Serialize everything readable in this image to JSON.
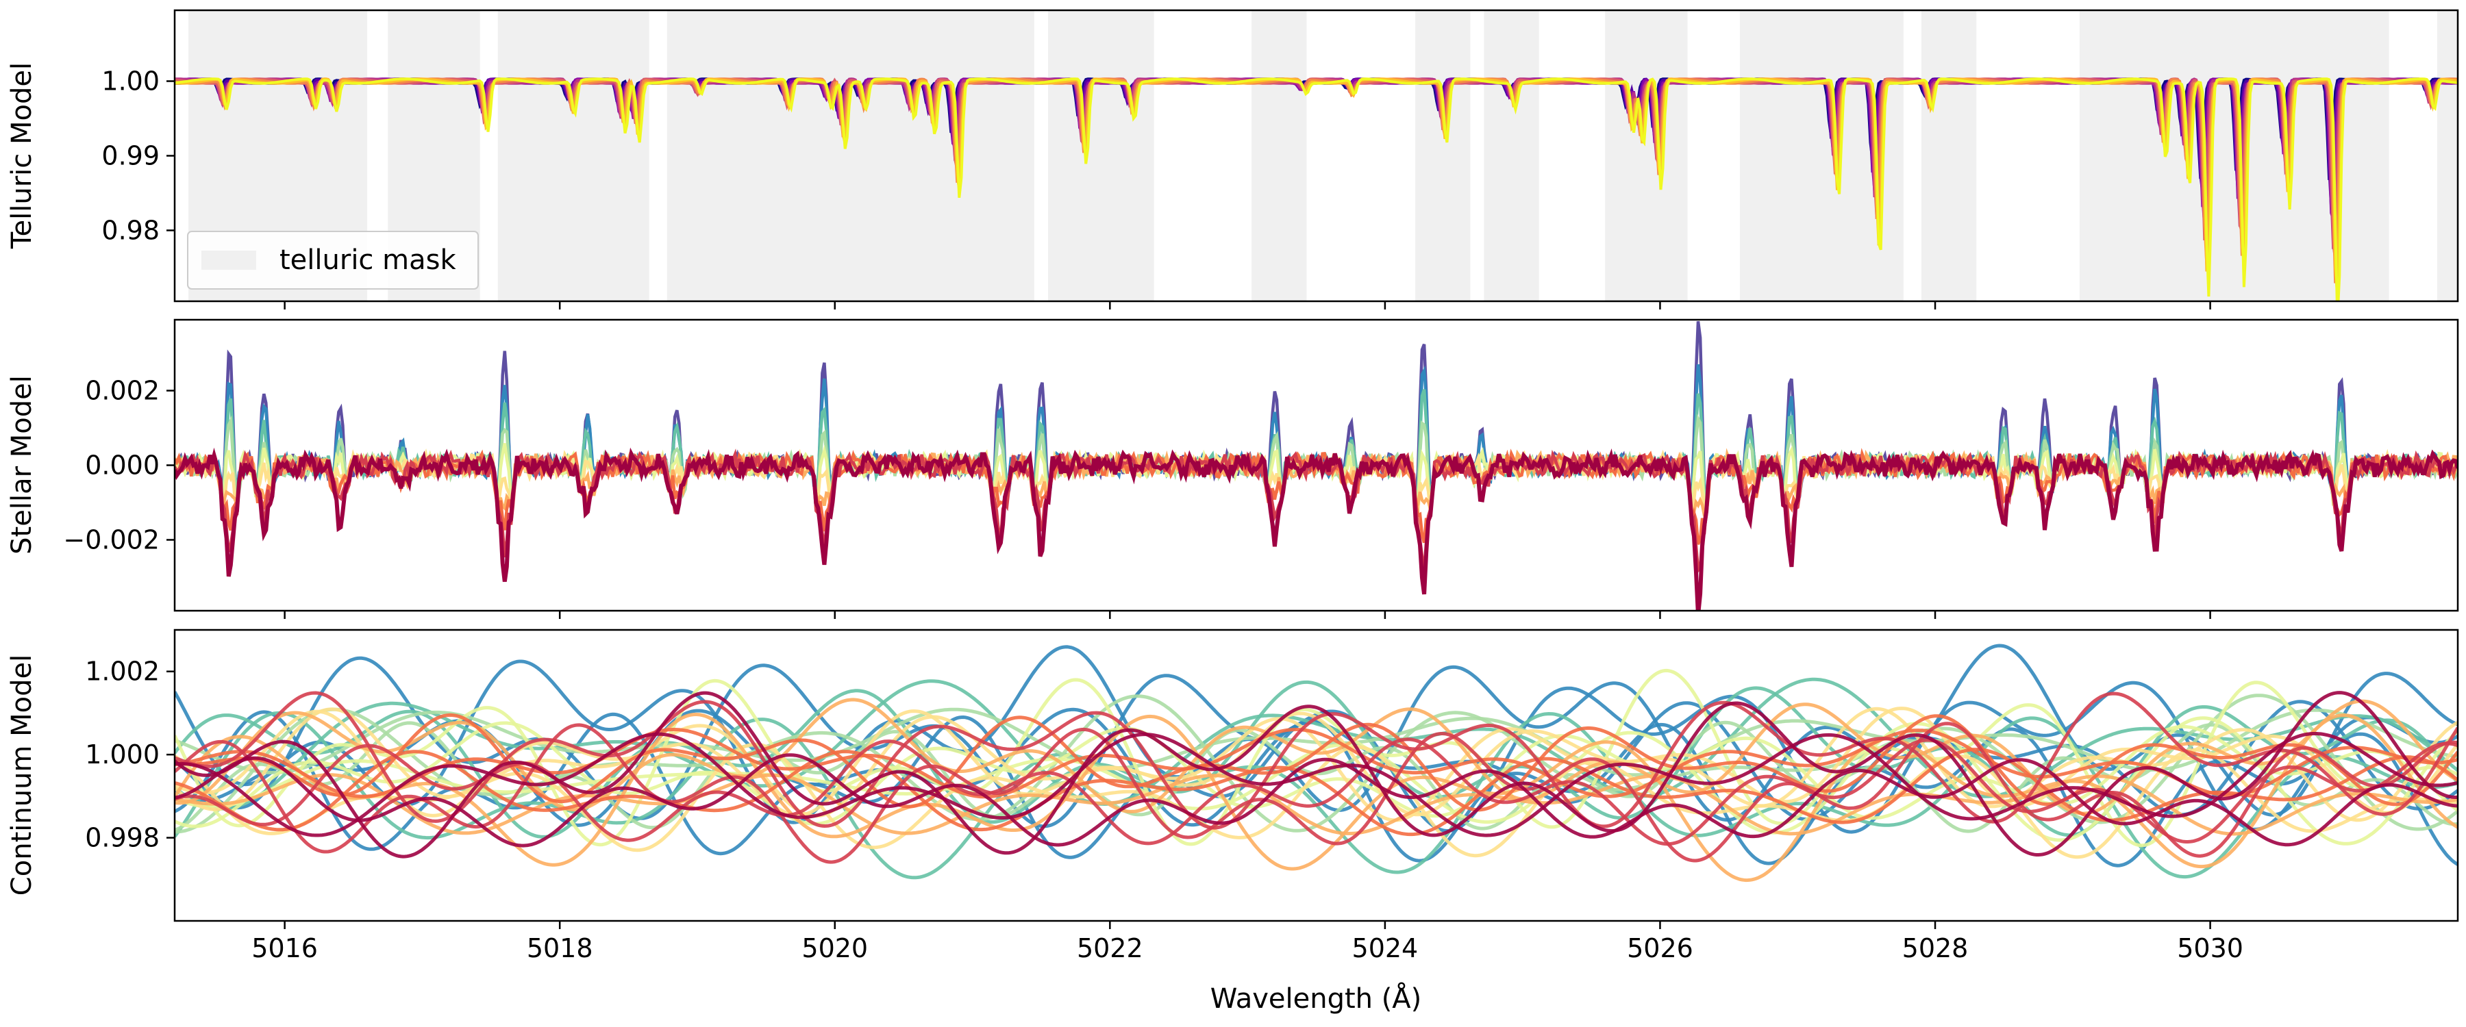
{
  "chart_data": [
    {
      "panel": "telluric",
      "type": "line",
      "ylabel": "Telluric Model",
      "xlim": [
        5015.2,
        5031.8
      ],
      "ylim": [
        0.9705,
        1.0095
      ],
      "yticks": [
        1.0,
        0.99,
        0.98
      ],
      "ytick_labels": [
        "1.00",
        "0.99",
        "0.98"
      ],
      "grid": false,
      "colormap": "plasma",
      "colormap_colors": [
        "#0d0887",
        "#5302a3",
        "#8b0aa5",
        "#b83289",
        "#db5c68",
        "#f48849",
        "#febd2a",
        "#f0f921"
      ],
      "n_series": 8,
      "baseline": 1.0,
      "absorption_lines": [
        {
          "x": 5015.55,
          "depth": 0.004
        },
        {
          "x": 5016.2,
          "depth": 0.004
        },
        {
          "x": 5016.35,
          "depth": 0.004
        },
        {
          "x": 5017.45,
          "depth": 0.007
        },
        {
          "x": 5018.08,
          "depth": 0.0045
        },
        {
          "x": 5018.45,
          "depth": 0.007
        },
        {
          "x": 5018.55,
          "depth": 0.008
        },
        {
          "x": 5019.0,
          "depth": 0.002
        },
        {
          "x": 5019.65,
          "depth": 0.004
        },
        {
          "x": 5019.95,
          "depth": 0.0035
        },
        {
          "x": 5020.05,
          "depth": 0.009
        },
        {
          "x": 5020.2,
          "depth": 0.004
        },
        {
          "x": 5020.55,
          "depth": 0.005
        },
        {
          "x": 5020.7,
          "depth": 0.007
        },
        {
          "x": 5020.88,
          "depth": 0.016
        },
        {
          "x": 5021.8,
          "depth": 0.0115
        },
        {
          "x": 5022.15,
          "depth": 0.005
        },
        {
          "x": 5023.4,
          "depth": 0.0015
        },
        {
          "x": 5023.75,
          "depth": 0.002
        },
        {
          "x": 5024.42,
          "depth": 0.0085
        },
        {
          "x": 5024.92,
          "depth": 0.0035
        },
        {
          "x": 5025.78,
          "depth": 0.007
        },
        {
          "x": 5025.85,
          "depth": 0.009
        },
        {
          "x": 5025.98,
          "depth": 0.015
        },
        {
          "x": 5027.27,
          "depth": 0.016
        },
        {
          "x": 5027.57,
          "depth": 0.024
        },
        {
          "x": 5027.95,
          "depth": 0.004
        },
        {
          "x": 5029.65,
          "depth": 0.0105
        },
        {
          "x": 5029.82,
          "depth": 0.014
        },
        {
          "x": 5029.96,
          "depth": 0.029
        },
        {
          "x": 5030.22,
          "depth": 0.028
        },
        {
          "x": 5030.55,
          "depth": 0.017
        },
        {
          "x": 5030.9,
          "depth": 0.0325
        },
        {
          "x": 5031.6,
          "depth": 0.004
        }
      ],
      "mask_regions": [
        [
          5015.3,
          5016.6
        ],
        [
          5016.75,
          5017.42
        ],
        [
          5017.55,
          5018.65
        ],
        [
          5018.78,
          5021.45
        ],
        [
          5021.55,
          5022.32
        ],
        [
          5023.03,
          5023.43
        ],
        [
          5024.22,
          5024.62
        ],
        [
          5024.72,
          5025.12
        ],
        [
          5025.6,
          5026.2
        ],
        [
          5026.58,
          5027.77
        ],
        [
          5027.9,
          5028.3
        ],
        [
          5029.05,
          5031.3
        ],
        [
          5031.65,
          5031.8
        ]
      ],
      "mask_color": "#f0f0f0",
      "legend": {
        "label": "telluric mask",
        "loc": "lower left"
      }
    },
    {
      "panel": "stellar",
      "type": "line",
      "ylabel": "Stellar Model",
      "xlim": [
        5015.2,
        5031.8
      ],
      "ylim": [
        -0.0039,
        0.0039
      ],
      "yticks": [
        0.002,
        0.0,
        -0.002
      ],
      "ytick_labels": [
        "0.002",
        "0.000",
        "−0.002"
      ],
      "grid": false,
      "colormap": "Spectral_r",
      "colormap_colors": [
        "#5e4fa2",
        "#3288bd",
        "#66c2a5",
        "#abdda4",
        "#e6f598",
        "#fee08b",
        "#fdae61",
        "#f46d43",
        "#d53e4f",
        "#9e0142"
      ],
      "n_series": 10,
      "features": [
        {
          "x": 5015.6,
          "amp": 0.003
        },
        {
          "x": 5015.85,
          "amp": 0.0025
        },
        {
          "x": 5016.4,
          "amp": 0.0015
        },
        {
          "x": 5016.85,
          "amp": 0.0008
        },
        {
          "x": 5017.6,
          "amp": 0.003
        },
        {
          "x": 5018.2,
          "amp": 0.0018
        },
        {
          "x": 5018.85,
          "amp": 0.0015
        },
        {
          "x": 5019.92,
          "amp": 0.0035
        },
        {
          "x": 5021.2,
          "amp": 0.0023
        },
        {
          "x": 5021.5,
          "amp": 0.0028
        },
        {
          "x": 5023.2,
          "amp": 0.002
        },
        {
          "x": 5023.75,
          "amp": 0.0015
        },
        {
          "x": 5024.28,
          "amp": 0.0035
        },
        {
          "x": 5024.7,
          "amp": 0.001
        },
        {
          "x": 5026.28,
          "amp": 0.0038
        },
        {
          "x": 5026.65,
          "amp": 0.0018
        },
        {
          "x": 5026.95,
          "amp": 0.0025
        },
        {
          "x": 5028.5,
          "amp": 0.002
        },
        {
          "x": 5028.8,
          "amp": 0.0015
        },
        {
          "x": 5029.3,
          "amp": 0.0018
        },
        {
          "x": 5029.6,
          "amp": 0.0024
        },
        {
          "x": 5030.95,
          "amp": 0.003
        }
      ]
    },
    {
      "panel": "continuum",
      "type": "line",
      "ylabel": "Continuum Model",
      "xlabel": "Wavelength (Å)",
      "xlim": [
        5015.2,
        5031.8
      ],
      "ylim": [
        0.996,
        1.003
      ],
      "yticks": [
        1.002,
        1.0,
        0.998
      ],
      "ytick_labels": [
        "1.002",
        "1.000",
        "0.998"
      ],
      "xticks": [
        5016,
        5018,
        5020,
        5022,
        5024,
        5026,
        5028,
        5030
      ],
      "xtick_labels": [
        "5016",
        "5018",
        "5020",
        "5022",
        "5024",
        "5026",
        "5028",
        "5030"
      ],
      "grid": false,
      "colormap": "Spectral",
      "colormap_colors": [
        "#3288bd",
        "#66c2a5",
        "#abdda4",
        "#e6f598",
        "#fee08b",
        "#fdae61",
        "#f46d43",
        "#d53e4f",
        "#9e0142"
      ],
      "n_series": 28,
      "center": 0.9998,
      "amplitude_range": [
        0.0006,
        0.0022
      ]
    }
  ]
}
